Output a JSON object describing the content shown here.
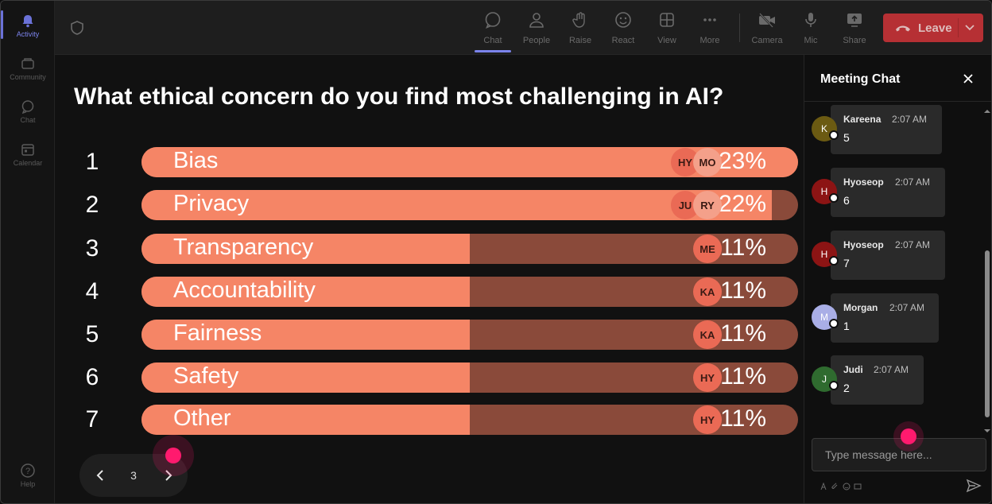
{
  "rail": {
    "items": [
      {
        "label": "Activity",
        "icon": "bell-icon",
        "active": true
      },
      {
        "label": "Community",
        "icon": "community-icon"
      },
      {
        "label": "Chat",
        "icon": "chat-icon"
      },
      {
        "label": "Calendar",
        "icon": "calendar-icon"
      }
    ],
    "help_label": "Help"
  },
  "topbar": {
    "chat": "Chat",
    "people": "People",
    "raise": "Raise",
    "react": "React",
    "view": "View",
    "more": "More",
    "camera": "Camera",
    "mic": "Mic",
    "share": "Share",
    "leave": "Leave"
  },
  "poll": {
    "question": "What ethical concern do you find most challenging in AI?",
    "options": [
      {
        "num": "1",
        "label": "Bias",
        "pct": "23%",
        "fraction": 1.0,
        "voters": [
          "HY",
          "MO"
        ]
      },
      {
        "num": "2",
        "label": "Privacy",
        "pct": "22%",
        "fraction": 0.96,
        "voters": [
          "JU",
          "RY"
        ]
      },
      {
        "num": "3",
        "label": "Transparency",
        "pct": "11%",
        "fraction": 0.5,
        "voters": [
          "ME"
        ]
      },
      {
        "num": "4",
        "label": "Accountability",
        "pct": "11%",
        "fraction": 0.5,
        "voters": [
          "KA"
        ]
      },
      {
        "num": "5",
        "label": "Fairness",
        "pct": "11%",
        "fraction": 0.5,
        "voters": [
          "KA"
        ]
      },
      {
        "num": "6",
        "label": "Safety",
        "pct": "11%",
        "fraction": 0.5,
        "voters": [
          "HY"
        ]
      },
      {
        "num": "7",
        "label": "Other",
        "pct": "11%",
        "fraction": 0.5,
        "voters": [
          "HY"
        ]
      }
    ],
    "page": "3"
  },
  "chat": {
    "title": "Meeting Chat",
    "messages": [
      {
        "initial": "K",
        "name": "Kareena",
        "time": "2:07 AM",
        "text": "5",
        "avatar_color": "#6b5a12"
      },
      {
        "initial": "H",
        "name": "Hyoseop",
        "time": "2:07 AM",
        "text": "6",
        "avatar_color": "#8c1414"
      },
      {
        "initial": "H",
        "name": "Hyoseop",
        "time": "2:07 AM",
        "text": "7",
        "avatar_color": "#8c1414"
      },
      {
        "initial": "M",
        "name": "Morgan",
        "time": "2:07 AM",
        "text": "1",
        "avatar_color": "#a9aee6"
      },
      {
        "initial": "J",
        "name": "Judi",
        "time": "2:07 AM",
        "text": "2",
        "avatar_color": "#2f6b2f"
      }
    ],
    "input_placeholder": "Type message here..."
  },
  "colors": {
    "bar_fill": "#f58566",
    "bar_track": "#8a4a3a",
    "leave": "#d13438",
    "accent": "#7b83eb",
    "cursor": "#ff1a6e"
  }
}
